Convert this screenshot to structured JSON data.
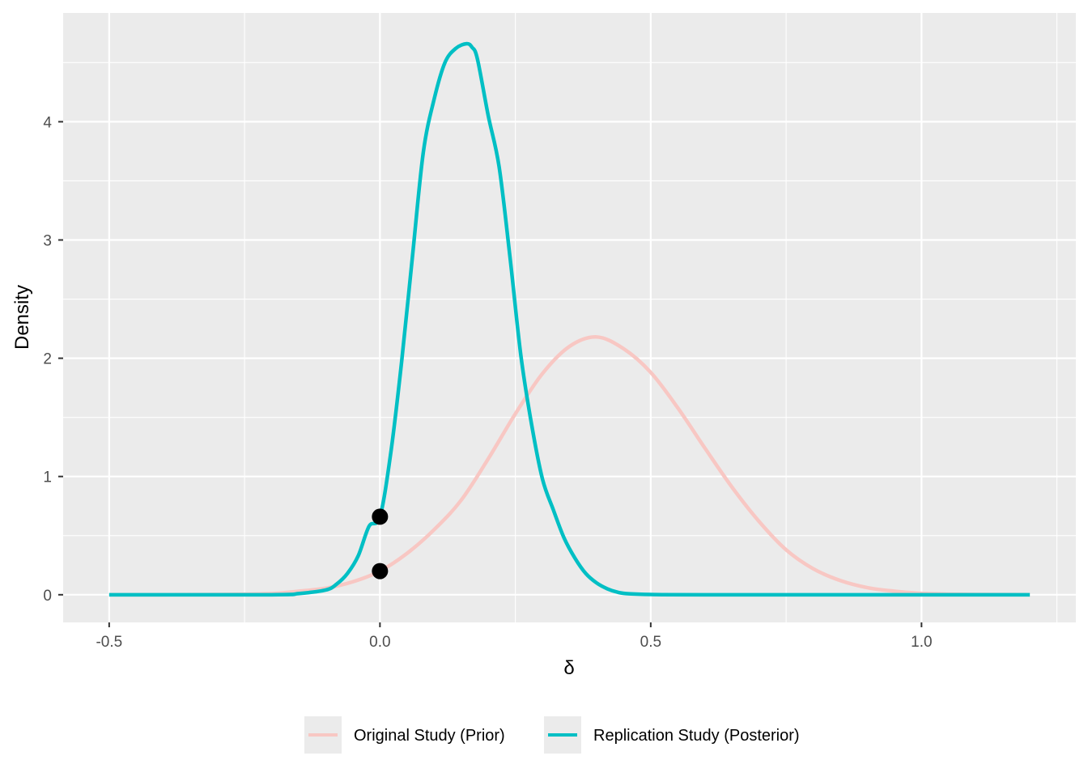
{
  "chart_data": {
    "type": "line",
    "xlabel": "δ",
    "ylabel": "Density",
    "xlim": [
      -0.585,
      1.285
    ],
    "ylim": [
      -0.234,
      4.92
    ],
    "x_major_ticks": [
      -0.5,
      0.0,
      0.5,
      1.0
    ],
    "x_tick_labels": [
      "-0.5",
      "0.0",
      "0.5",
      "1.0"
    ],
    "x_minor_ticks": [
      -0.25,
      0.25,
      0.75,
      1.25
    ],
    "y_major_ticks": [
      0,
      1,
      2,
      3,
      4
    ],
    "y_tick_labels": [
      "0",
      "1",
      "2",
      "3",
      "4"
    ],
    "y_minor_ticks": [
      0.5,
      1.5,
      2.5,
      3.5,
      4.5
    ],
    "grid": true,
    "legend_position": "bottom",
    "background": "#ebebeb",
    "gridline_color": "#ffffff",
    "series": [
      {
        "name": "Original Study (Prior)",
        "color": "#f8c7c3",
        "x": [
          -0.5,
          -0.4,
          -0.3,
          -0.2,
          -0.15,
          -0.1,
          -0.05,
          0.0,
          0.05,
          0.1,
          0.15,
          0.2,
          0.25,
          0.3,
          0.35,
          0.4,
          0.45,
          0.5,
          0.55,
          0.6,
          0.65,
          0.7,
          0.75,
          0.8,
          0.85,
          0.9,
          0.95,
          1.0,
          1.05,
          1.1,
          1.2
        ],
        "y": [
          0.0,
          0.0,
          0.002,
          0.01,
          0.03,
          0.055,
          0.11,
          0.2,
          0.35,
          0.55,
          0.8,
          1.15,
          1.53,
          1.87,
          2.1,
          2.18,
          2.08,
          1.88,
          1.58,
          1.24,
          0.91,
          0.62,
          0.38,
          0.22,
          0.12,
          0.06,
          0.03,
          0.012,
          0.005,
          0.002,
          0.0
        ]
      },
      {
        "name": "Replication Study (Posterior)",
        "color": "#00bfc4",
        "x": [
          -0.5,
          -0.2,
          -0.15,
          -0.1,
          -0.08,
          -0.06,
          -0.04,
          -0.02,
          0.0,
          0.02,
          0.04,
          0.06,
          0.08,
          0.1,
          0.12,
          0.14,
          0.16,
          0.17,
          0.18,
          0.2,
          0.22,
          0.24,
          0.26,
          0.28,
          0.3,
          0.32,
          0.34,
          0.36,
          0.38,
          0.4,
          0.42,
          0.44,
          0.46,
          0.5,
          0.6,
          1.2
        ],
        "y": [
          0.0,
          0.0,
          0.01,
          0.04,
          0.09,
          0.18,
          0.33,
          0.58,
          0.66,
          1.2,
          1.97,
          2.86,
          3.74,
          4.19,
          4.5,
          4.62,
          4.66,
          4.63,
          4.53,
          4.05,
          3.62,
          2.86,
          2.03,
          1.44,
          0.98,
          0.72,
          0.48,
          0.31,
          0.18,
          0.1,
          0.05,
          0.02,
          0.008,
          0.002,
          0.0,
          0.0
        ]
      }
    ],
    "points": [
      {
        "x": 0.0,
        "y": 0.66
      },
      {
        "x": 0.0,
        "y": 0.2
      }
    ]
  }
}
